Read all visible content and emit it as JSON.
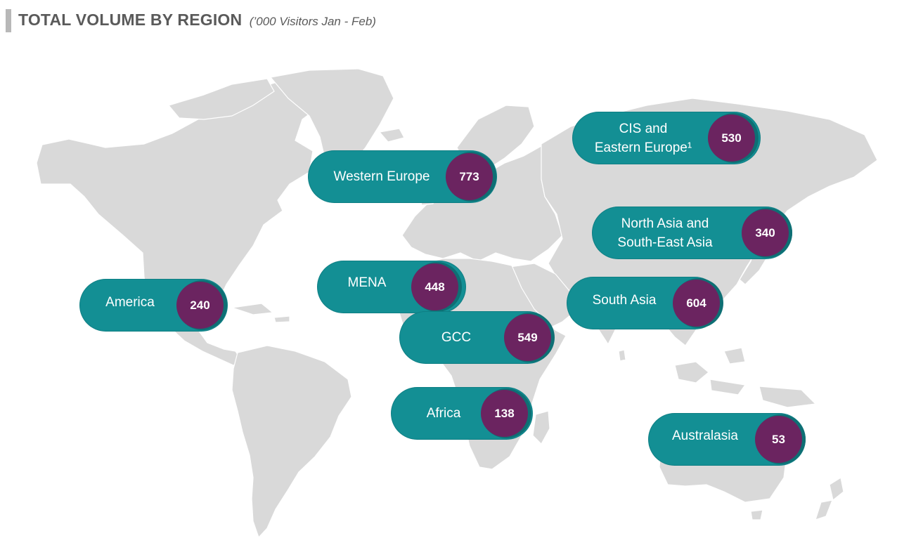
{
  "title": {
    "main": "TOTAL VOLUME BY REGION",
    "subtitle": "(’000 Visitors Jan - Feb)"
  },
  "colors": {
    "pill": "#138f94",
    "value_circle": "#6b2460",
    "land": "#d9d9d9",
    "title_text": "#5a5a5a"
  },
  "regions": [
    {
      "id": "cis",
      "label": "CIS and\nEastern Europe¹",
      "value": "530"
    },
    {
      "id": "western-europe",
      "label": "Western Europe",
      "value": "773"
    },
    {
      "id": "north-asia",
      "label": "North Asia and\nSouth-East Asia",
      "value": "340"
    },
    {
      "id": "mena",
      "label": "MENA",
      "value": "448"
    },
    {
      "id": "america",
      "label": "America",
      "value": "240"
    },
    {
      "id": "south-asia",
      "label": "South Asia",
      "value": "604"
    },
    {
      "id": "gcc",
      "label": "GCC",
      "value": "549"
    },
    {
      "id": "africa",
      "label": "Africa",
      "value": "138"
    },
    {
      "id": "australasia",
      "label": "Australasia",
      "value": "53"
    }
  ]
}
